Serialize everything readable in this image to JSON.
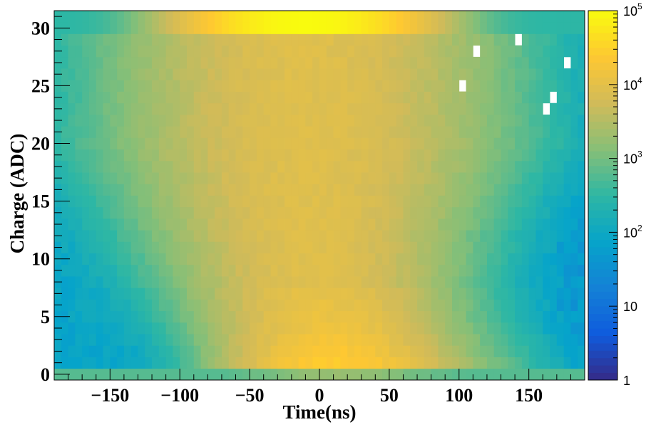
{
  "chart_data": {
    "type": "heatmap",
    "title": "",
    "xlabel": "Time(ns)",
    "ylabel": "Charge (ADC)",
    "xlim": [
      -190,
      190
    ],
    "ylim": [
      -0.5,
      31.5
    ],
    "x_ticks": [
      -150,
      -100,
      -50,
      0,
      50,
      100,
      150
    ],
    "x_tick_labels": [
      "−150",
      "−100",
      "−50",
      "0",
      "50",
      "100",
      "150"
    ],
    "y_ticks": [
      0,
      5,
      10,
      15,
      20,
      25,
      30
    ],
    "y_tick_labels": [
      "0",
      "5",
      "10",
      "15",
      "20",
      "25",
      "30"
    ],
    "x_bins": 76,
    "y_bins": 32,
    "z_scale": "log",
    "zlim": [
      1,
      100000
    ],
    "colorbar_ticks": [
      {
        "base": "1",
        "exp": ""
      },
      {
        "base": "10",
        "exp": ""
      },
      {
        "base": "10",
        "exp": "2"
      },
      {
        "base": "10",
        "exp": "3"
      },
      {
        "base": "10",
        "exp": "4"
      },
      {
        "base": "10",
        "exp": "5"
      }
    ],
    "palette": "kBird",
    "colors": [
      "#352a87",
      "#0f5cdd",
      "#1481d6",
      "#06a4ca",
      "#2eb7a4",
      "#87bf77",
      "#d1bb59",
      "#fec832",
      "#f9fb0e"
    ],
    "description_of_distribution": {
      "peak_time_ns": 5,
      "peak_charge_adc": 3,
      "peak_counts": 30000,
      "charge_row_30_counts_max": 100000,
      "charge_row_0_counts": 600,
      "background_counts": 60,
      "empty_cells": [
        [
          145,
          29
        ],
        [
          115,
          28
        ],
        [
          180,
          27
        ],
        [
          105,
          25
        ],
        [
          170,
          24
        ],
        [
          165,
          23
        ]
      ]
    }
  }
}
